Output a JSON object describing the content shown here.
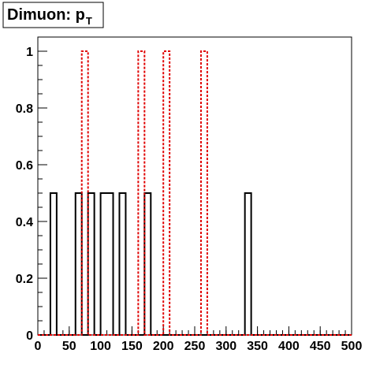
{
  "chart_data": {
    "type": "histogram",
    "title": "Dimuon: p",
    "title_subscript": "T",
    "xlim": [
      0,
      500
    ],
    "ylim": [
      0,
      1.05
    ],
    "x_ticks": [
      0,
      50,
      100,
      150,
      200,
      250,
      300,
      350,
      400,
      450,
      500
    ],
    "y_ticks": [
      0,
      0.2,
      0.4,
      0.6,
      0.8,
      1
    ],
    "y_tick_labels": [
      "0",
      "0.2",
      "0.4",
      "0.6",
      "0.8",
      "1"
    ],
    "bin_width": 10,
    "series": [
      {
        "style": "solid",
        "color": "#000000",
        "bins": [
          {
            "x": 20,
            "value": 0.5
          },
          {
            "x": 60,
            "value": 0.5
          },
          {
            "x": 80,
            "value": 0.5
          },
          {
            "x": 100,
            "value": 0.5
          },
          {
            "x": 110,
            "value": 0.5
          },
          {
            "x": 130,
            "value": 0.5
          },
          {
            "x": 170,
            "value": 0.5
          },
          {
            "x": 330,
            "value": 0.5
          }
        ]
      },
      {
        "style": "dashed",
        "color": "#e00000",
        "bins": [
          {
            "x": 70,
            "value": 1
          },
          {
            "x": 160,
            "value": 1
          },
          {
            "x": 200,
            "value": 1
          },
          {
            "x": 260,
            "value": 1
          }
        ]
      }
    ],
    "grid": false,
    "legend": "none"
  }
}
